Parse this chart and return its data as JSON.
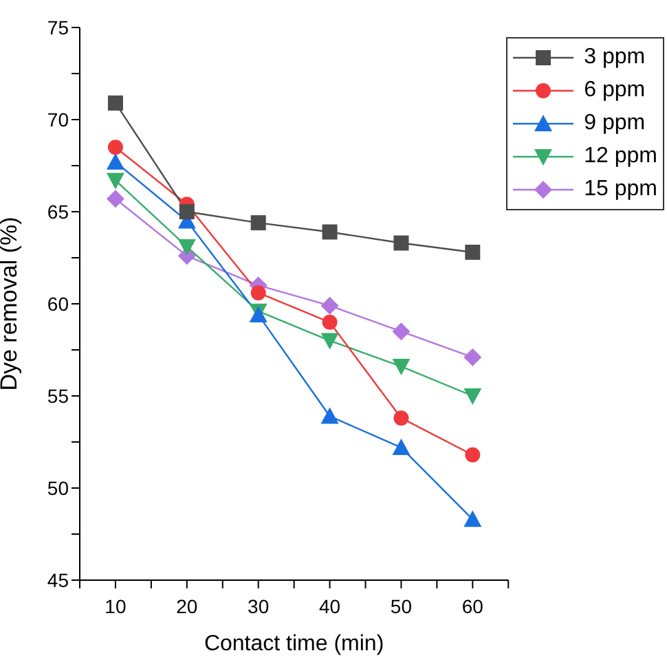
{
  "chart_data": {
    "type": "line",
    "xlabel": "Contact time (min)",
    "ylabel": "Dye removal (%)",
    "x": [
      10,
      20,
      30,
      40,
      50,
      60
    ],
    "series": [
      {
        "name": "3 ppm",
        "color": "#4d4d4d",
        "marker": "square",
        "values": [
          70.9,
          65.0,
          64.4,
          63.9,
          63.3,
          62.8
        ]
      },
      {
        "name": "6 ppm",
        "color": "#f0393c",
        "marker": "circle",
        "values": [
          68.5,
          65.4,
          60.6,
          59.0,
          53.8,
          51.8
        ]
      },
      {
        "name": "9 ppm",
        "color": "#1a6fdf",
        "marker": "triangle",
        "values": [
          67.7,
          64.5,
          59.4,
          53.9,
          52.2,
          48.3
        ]
      },
      {
        "name": "12 ppm",
        "color": "#37ad6b",
        "marker": "triangle-down",
        "values": [
          66.7,
          63.1,
          59.6,
          58.0,
          56.6,
          55.0
        ]
      },
      {
        "name": "15 ppm",
        "color": "#b177de",
        "marker": "diamond",
        "values": [
          65.7,
          62.6,
          61.0,
          59.9,
          58.5,
          57.1
        ]
      }
    ],
    "xlim": [
      5,
      65
    ],
    "xticks": [
      {
        "value": 5,
        "label": null
      },
      10,
      {
        "value": 15,
        "label": null
      },
      20,
      {
        "value": 25,
        "label": null
      },
      30,
      {
        "value": 35,
        "label": null
      },
      40,
      {
        "value": 45,
        "label": null
      },
      50,
      {
        "value": 55,
        "label": null
      },
      60,
      {
        "value": 65,
        "label": null
      }
    ],
    "ylim": [
      45,
      75
    ],
    "yticks": [
      45,
      {
        "value": 47.5,
        "label": null
      },
      50,
      {
        "value": 52.5,
        "label": null
      },
      55,
      {
        "value": 57.5,
        "label": null
      },
      60,
      {
        "value": 62.5,
        "label": null
      },
      65,
      {
        "value": 67.5,
        "label": null
      },
      70,
      {
        "value": 72.5,
        "label": null
      },
      75
    ],
    "grid": false,
    "legend": "top right",
    "line_style": "solid"
  }
}
